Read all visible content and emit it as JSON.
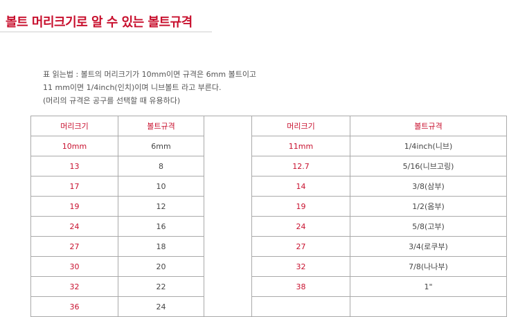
{
  "title": "볼트 머리크기로 알 수 있는 볼트규격",
  "description": [
    "표 읽는법 : 볼트의 머리크기가 10mm이면 규격은 6mm 볼트이고",
    "11 mm이면 1/4inch(인치)이며 니브볼트 라고 부른다.",
    "(머리의 규격은 공구를 선택할 때 유용하다)"
  ],
  "table": {
    "left_headers": [
      "머리크기",
      "볼트규격"
    ],
    "right_headers": [
      "머리크기",
      "볼트규격"
    ],
    "left_rows": [
      [
        "10mm",
        "6mm"
      ],
      [
        "13",
        "8"
      ],
      [
        "17",
        "10"
      ],
      [
        "19",
        "12"
      ],
      [
        "24",
        "16"
      ],
      [
        "27",
        "18"
      ],
      [
        "30",
        "20"
      ],
      [
        "32",
        "22"
      ],
      [
        "36",
        "24"
      ]
    ],
    "right_rows": [
      [
        "11mm",
        "1/4inch(니브)"
      ],
      [
        "12.7",
        "5/16(니브고링)"
      ],
      [
        "14",
        "3/8(삼부)"
      ],
      [
        "19",
        "1/2(옴부)"
      ],
      [
        "24",
        "5/8(고부)"
      ],
      [
        "27",
        "3/4(로쿠부)"
      ],
      [
        "32",
        "7/8(나나부)"
      ],
      [
        "38",
        "1\""
      ],
      [
        "",
        ""
      ]
    ]
  },
  "colors": {
    "accent": "#c8102e",
    "border": "#a9a9a9",
    "text": "#444444"
  }
}
